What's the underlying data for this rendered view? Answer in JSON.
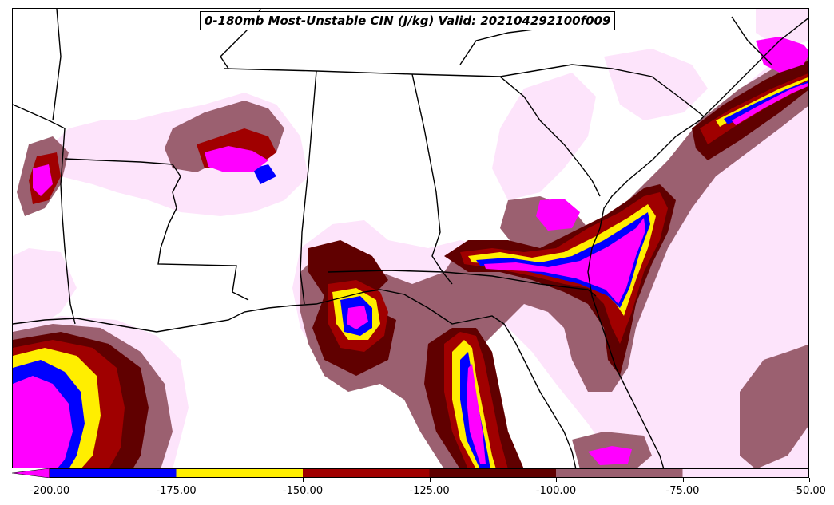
{
  "title": "0-180mb Most-Unstable CIN (J/kg) Valid: 202104292100f009",
  "colors": {
    "lt_-200": "#ff00ff",
    "-200_-175": "#0000ff",
    "-175_-150": "#ffee00",
    "-150_-125": "#a00000",
    "-125_-100": "#600000",
    "-100_-75": "#9b6070",
    "-75_-50": "#fde4fb",
    "boundary": "#000000"
  },
  "colorbar": {
    "ticks": [
      "-200.00",
      "-175.00",
      "-150.00",
      "-125.00",
      "-100.00",
      "-75.00",
      "-50.00"
    ],
    "extend": "min"
  }
}
